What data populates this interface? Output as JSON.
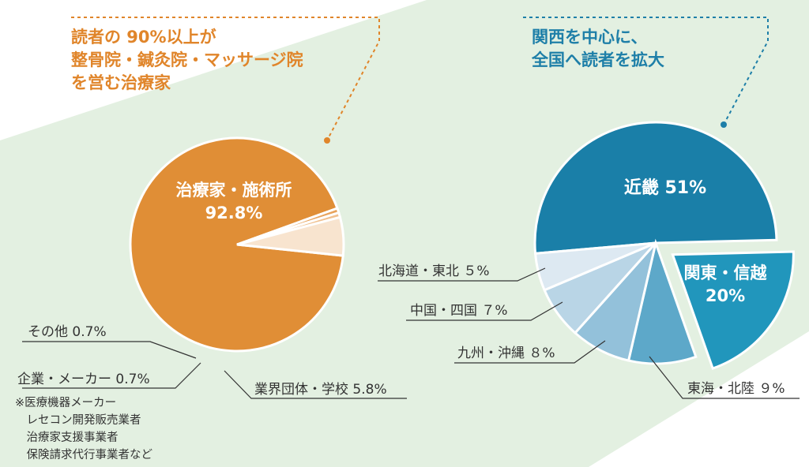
{
  "colors": {
    "band": "#e3f0e1",
    "left_accent": "#e0852a",
    "right_accent": "#1e7fa8",
    "text": "#333333"
  },
  "callouts": {
    "left": "読者の 90%以上が\n整骨院・鍼灸院・マッサージ院\nを営む治療家",
    "right": "関西を中心に、\n全国へ読者を拡大"
  },
  "note": "※医療機器メーカー\n　レセコン開発販売業者\n　治療家支援事業者\n　保険請求代行事業者など",
  "chart_data": [
    {
      "type": "pie",
      "slices": [
        {
          "name": "治療家・施術所",
          "value": 92.8,
          "label": "治療家・施術所",
          "value_label": "92.8%",
          "color": "#e08e36"
        },
        {
          "name": "その他",
          "value": 0.7,
          "label": "その他 0.7%",
          "color": "#e8a35c"
        },
        {
          "name": "企業・メーカー",
          "value": 0.7,
          "label": "企業・メーカー 0.7%",
          "color": "#f0c08f"
        },
        {
          "name": "業界団体・学校",
          "value": 5.8,
          "label": "業界団体・学校 5.8%",
          "color": "#f8e4cf"
        }
      ]
    },
    {
      "type": "pie",
      "slices": [
        {
          "name": "近畿",
          "value": 51,
          "label": "近畿 51%",
          "color": "#1a7fa8"
        },
        {
          "name": "関東・信越",
          "value": 20,
          "label": "関東・信越",
          "value_label": "20%",
          "color": "#2196bc"
        },
        {
          "name": "東海・北陸",
          "value": 9,
          "label": "東海・北陸 ９%",
          "color": "#5da8c9"
        },
        {
          "name": "九州・沖縄",
          "value": 8,
          "label": "九州・沖縄 ８%",
          "color": "#93c1da"
        },
        {
          "name": "中国・四国",
          "value": 7,
          "label": "中国・四国 ７%",
          "color": "#b9d5e6"
        },
        {
          "name": "北海道・東北",
          "value": 5,
          "label": "北海道・東北 ５%",
          "color": "#dde9f2"
        }
      ]
    }
  ]
}
